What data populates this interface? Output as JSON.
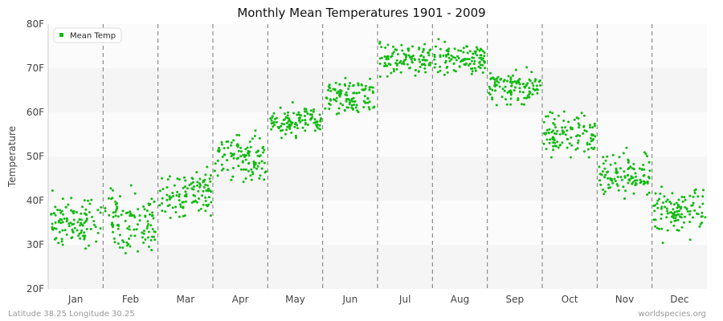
{
  "chart_data": {
    "type": "scatter",
    "title": "Monthly Mean Temperatures 1901 - 2009",
    "xlabel": "",
    "ylabel": "Temperature",
    "yunit": "F",
    "ylim": [
      20,
      80
    ],
    "yticks": [
      "20F",
      "30F",
      "40F",
      "50F",
      "60F",
      "70F",
      "80F"
    ],
    "categories": [
      "Jan",
      "Feb",
      "Mar",
      "Apr",
      "May",
      "Jun",
      "Jul",
      "Aug",
      "Sep",
      "Oct",
      "Nov",
      "Dec"
    ],
    "grid": true,
    "legend_position": "top-left",
    "series": [
      {
        "name": "Mean Temp",
        "color": "#11bb11",
        "years": [
          1901,
          2009
        ],
        "points_per_month": 109,
        "monthly_value_range": [
          [
            27,
            43
          ],
          [
            25,
            46
          ],
          [
            34,
            49
          ],
          [
            43,
            57
          ],
          [
            53,
            63
          ],
          [
            58,
            69
          ],
          [
            67,
            77
          ],
          [
            67,
            77
          ],
          [
            60,
            71
          ],
          [
            48,
            62
          ],
          [
            39,
            53
          ],
          [
            30,
            45
          ]
        ]
      }
    ]
  },
  "footer": {
    "left": "Latitude 38.25 Longitude 30.25",
    "right": "worldspecies.org"
  }
}
